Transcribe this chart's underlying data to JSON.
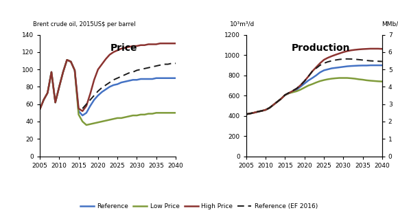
{
  "price_years": [
    2005,
    2006,
    2007,
    2008,
    2009,
    2010,
    2011,
    2012,
    2013,
    2014,
    2015,
    2016,
    2017,
    2018,
    2019,
    2020,
    2021,
    2022,
    2023,
    2024,
    2025,
    2026,
    2027,
    2028,
    2029,
    2030,
    2031,
    2032,
    2033,
    2034,
    2035,
    2036,
    2037,
    2038,
    2039,
    2040
  ],
  "price_ref": [
    54,
    65,
    73,
    97,
    62,
    80,
    97,
    111,
    109,
    99,
    52,
    47,
    50,
    58,
    65,
    70,
    74,
    77,
    80,
    82,
    83,
    85,
    86,
    87,
    88,
    88,
    89,
    89,
    89,
    89,
    90,
    90,
    90,
    90,
    90,
    90
  ],
  "price_low": [
    54,
    65,
    73,
    97,
    62,
    80,
    97,
    111,
    109,
    99,
    48,
    40,
    36,
    37,
    38,
    39,
    40,
    41,
    42,
    43,
    44,
    44,
    45,
    46,
    47,
    47,
    48,
    48,
    49,
    49,
    50,
    50,
    50,
    50,
    50,
    50
  ],
  "price_high": [
    54,
    65,
    73,
    97,
    62,
    80,
    97,
    111,
    109,
    99,
    55,
    52,
    58,
    72,
    88,
    100,
    106,
    112,
    117,
    120,
    122,
    124,
    125,
    126,
    127,
    127,
    128,
    128,
    129,
    129,
    129,
    130,
    130,
    130,
    130,
    130
  ],
  "price_ref16": [
    null,
    null,
    null,
    null,
    null,
    null,
    null,
    null,
    null,
    null,
    null,
    55,
    60,
    65,
    70,
    75,
    79,
    82,
    85,
    88,
    90,
    92,
    94,
    96,
    97,
    99,
    100,
    101,
    102,
    103,
    104,
    105,
    106,
    106,
    107,
    107
  ],
  "prod_years": [
    2005,
    2006,
    2007,
    2008,
    2009,
    2010,
    2011,
    2012,
    2013,
    2014,
    2015,
    2016,
    2017,
    2018,
    2019,
    2020,
    2021,
    2022,
    2023,
    2024,
    2025,
    2026,
    2027,
    2028,
    2029,
    2030,
    2031,
    2032,
    2033,
    2034,
    2035,
    2036,
    2037,
    2038,
    2039,
    2040
  ],
  "prod_ref": [
    415,
    422,
    430,
    440,
    448,
    458,
    478,
    508,
    538,
    568,
    605,
    622,
    638,
    658,
    688,
    718,
    748,
    772,
    798,
    828,
    848,
    858,
    868,
    873,
    878,
    883,
    888,
    891,
    893,
    895,
    896,
    896,
    898,
    898,
    898,
    898
  ],
  "prod_low": [
    415,
    422,
    430,
    440,
    448,
    458,
    478,
    508,
    538,
    568,
    605,
    622,
    632,
    642,
    658,
    678,
    698,
    712,
    728,
    742,
    752,
    760,
    766,
    770,
    773,
    773,
    773,
    770,
    766,
    760,
    756,
    750,
    746,
    743,
    740,
    738
  ],
  "prod_high": [
    415,
    422,
    430,
    440,
    448,
    458,
    478,
    508,
    538,
    568,
    605,
    625,
    645,
    668,
    702,
    742,
    788,
    838,
    878,
    918,
    952,
    972,
    988,
    1002,
    1015,
    1028,
    1038,
    1046,
    1051,
    1055,
    1058,
    1060,
    1062,
    1062,
    1062,
    1060
  ],
  "prod_ref16": [
    415,
    422,
    430,
    440,
    448,
    458,
    478,
    508,
    538,
    568,
    605,
    628,
    648,
    670,
    702,
    742,
    788,
    838,
    868,
    898,
    918,
    932,
    942,
    950,
    956,
    960,
    961,
    960,
    958,
    954,
    950,
    946,
    942,
    940,
    938,
    936
  ],
  "price_ylim": [
    0,
    140
  ],
  "price_yticks": [
    0,
    20,
    40,
    60,
    80,
    100,
    120,
    140
  ],
  "prod_ylim": [
    0,
    1200
  ],
  "prod_yticks": [
    0,
    200,
    400,
    600,
    800,
    1000,
    1200
  ],
  "prod_y2lim": [
    0,
    7.0
  ],
  "prod_y2ticks": [
    0,
    1,
    2,
    3,
    4,
    5,
    6,
    7
  ],
  "xlim": [
    2005,
    2040
  ],
  "xticks": [
    2005,
    2010,
    2015,
    2020,
    2025,
    2030,
    2035,
    2040
  ],
  "color_ref": "#4472C4",
  "color_low": "#7F9B3A",
  "color_high": "#8B3330",
  "color_ref16": "#1a1a1a",
  "price_title": "Price",
  "prod_title": "Production",
  "price_ylabel_top": "Brent crude oil, 2015US$ per barrel",
  "prod_ylabel_left": "10³m³/d",
  "prod_ylabel_right": "MMb/d",
  "legend_ref": "Reference",
  "legend_low": "Low Price",
  "legend_high": "High Price",
  "legend_ref16": "Reference (EF 2016)"
}
